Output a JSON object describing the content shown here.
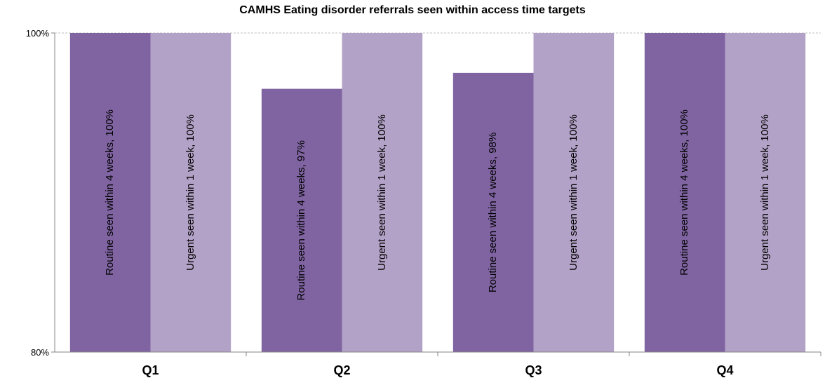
{
  "chart_data": {
    "type": "bar",
    "title": "CAMHS Eating disorder referrals seen within access time targets",
    "xlabel": "",
    "ylabel": "",
    "categories": [
      "Q1",
      "Q2",
      "Q3",
      "Q4"
    ],
    "ylim": [
      80,
      100
    ],
    "yticks": [
      {
        "value": 80,
        "label": "80%"
      },
      {
        "value": 100,
        "label": "100%"
      }
    ],
    "grid": false,
    "legend": "none",
    "series": [
      {
        "values": [
          100,
          96.5,
          97.5,
          100
        ],
        "color": "#8064a2",
        "labels": [
          "Routine seen within 4 weeks, 100%",
          "Routine seen within 4 weeks, 97%",
          "Routine seen within 4 weeks, 98%",
          "Routine seen within 4 weeks, 100%"
        ]
      },
      {
        "values": [
          100,
          100,
          100,
          100
        ],
        "color": "#b3a2c7",
        "labels": [
          "Urgent seen within 1 week, 100%",
          "Urgent seen within 1 week, 100%",
          "Urgent seen within 1 week, 100%",
          "Urgent seen within 1 week, 100%"
        ]
      }
    ]
  }
}
